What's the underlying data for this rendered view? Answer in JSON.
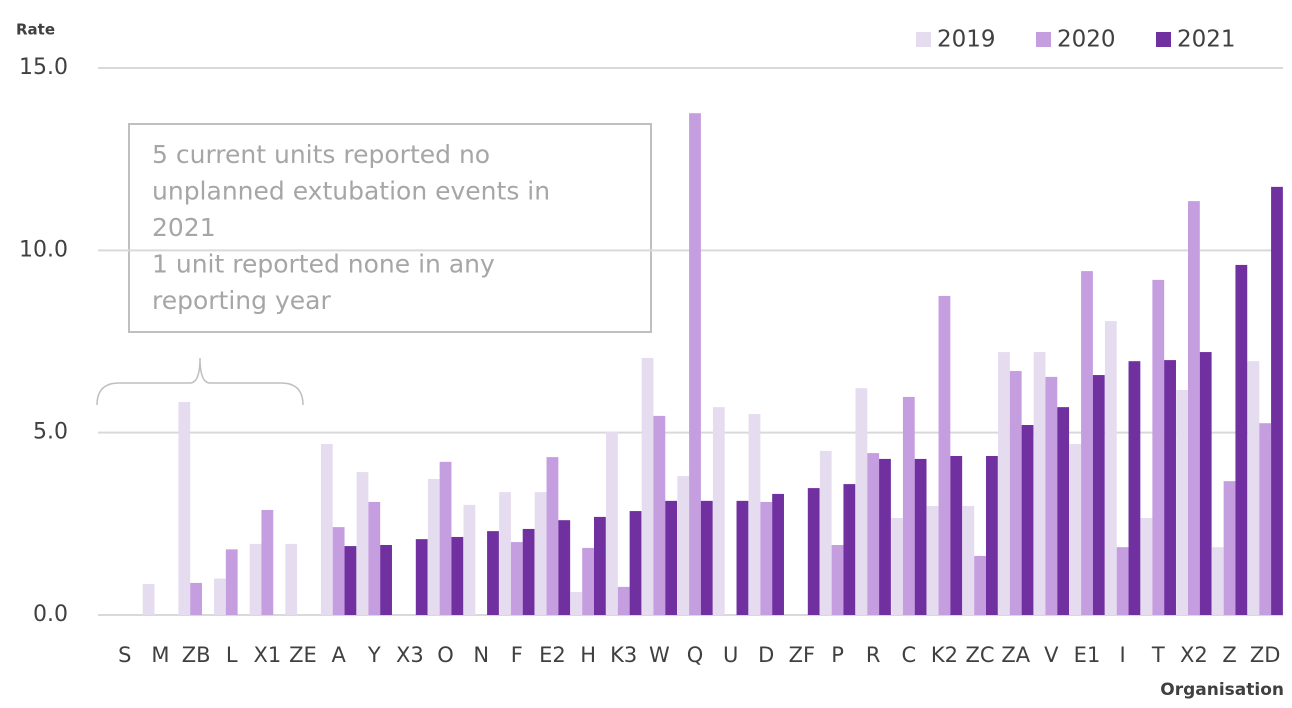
{
  "chart_data": {
    "type": "bar",
    "y_label": "Rate",
    "x_label": "Organisation",
    "categories": [
      "S",
      "M",
      "ZB",
      "L",
      "X1",
      "ZE",
      "A",
      "Y",
      "X3",
      "O",
      "N",
      "F",
      "E2",
      "H",
      "K3",
      "W",
      "Q",
      "U",
      "D",
      "ZF",
      "P",
      "R",
      "C",
      "K2",
      "ZC",
      "ZA",
      "V",
      "E1",
      "I",
      "T",
      "X2",
      "Z",
      "ZD"
    ],
    "series": [
      {
        "name": "2019",
        "color": "#e6dcef",
        "values": [
          null,
          0.85,
          5.84,
          1.0,
          1.95,
          1.95,
          4.69,
          3.92,
          null,
          3.73,
          3.02,
          3.37,
          3.37,
          0.63,
          5.02,
          7.05,
          3.81,
          5.7,
          5.51,
          null,
          4.5,
          6.22,
          2.66,
          2.99,
          2.99,
          7.21,
          7.21,
          4.69,
          8.06,
          2.66,
          6.17,
          1.86,
          6.96
        ]
      },
      {
        "name": "2020",
        "color": "#c59ee0",
        "values": [
          null,
          null,
          0.88,
          1.8,
          2.88,
          null,
          2.41,
          3.1,
          null,
          4.2,
          null,
          2.0,
          4.33,
          1.84,
          0.77,
          5.46,
          13.76,
          null,
          3.1,
          null,
          1.92,
          4.44,
          5.98,
          8.75,
          1.62,
          6.69,
          6.53,
          9.43,
          1.86,
          9.19,
          11.35,
          3.67,
          5.26
        ]
      },
      {
        "name": "2021",
        "color": "#7030a0",
        "values": [
          null,
          null,
          null,
          null,
          null,
          null,
          1.89,
          1.92,
          2.08,
          2.14,
          2.3,
          2.36,
          2.6,
          2.69,
          2.85,
          3.13,
          3.13,
          3.13,
          3.32,
          3.48,
          3.59,
          4.28,
          4.28,
          4.36,
          4.36,
          5.21,
          5.7,
          6.58,
          6.96,
          6.99,
          7.21,
          9.6,
          11.74
        ]
      }
    ],
    "ylim": [
      0,
      15
    ],
    "yticks": [
      {
        "value": 0,
        "label": "0.0"
      },
      {
        "value": 5,
        "label": "5.0"
      },
      {
        "value": 10,
        "label": "10.0"
      },
      {
        "value": 15,
        "label": "15.0"
      }
    ],
    "grid": true,
    "legend": "top-right",
    "annotation": [
      "5 current units reported no",
      "unplanned extubation events in",
      "2021",
      "1 unit reported none in any",
      "reporting year"
    ]
  }
}
